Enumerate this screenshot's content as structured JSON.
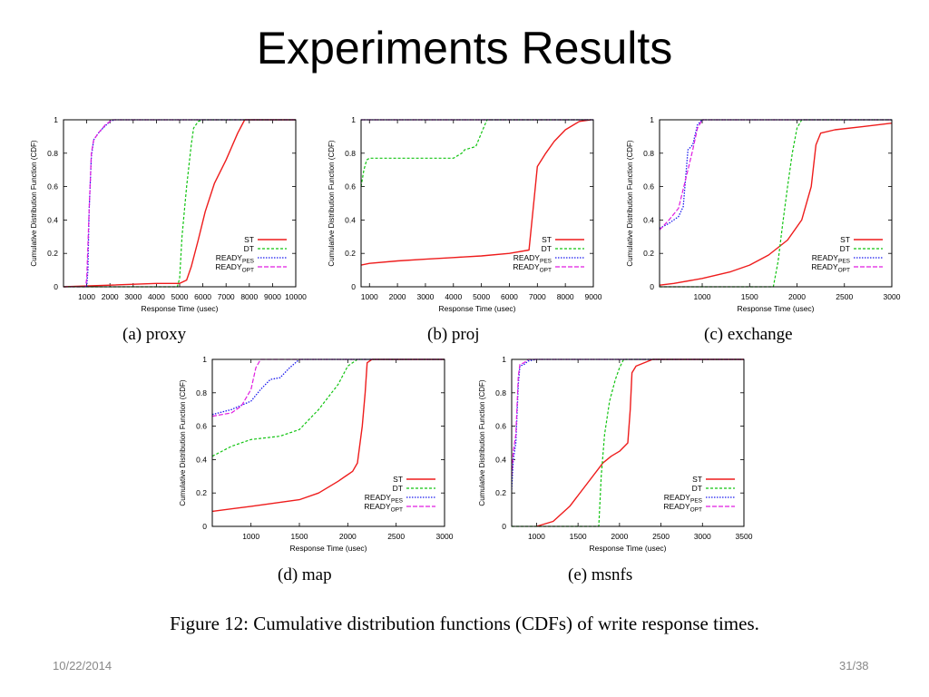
{
  "slide": {
    "title": "Experiments Results",
    "figure_caption": "Figure 12: Cumulative distribution functions (CDFs) of write response times.",
    "date": "10/22/2014",
    "page": "31/38"
  },
  "colors": {
    "ST": "#ee1c1c",
    "DT": "#12c412",
    "READY_PES": "#1a1aee",
    "READY_OPT": "#e01ce0"
  },
  "chart_data": [
    {
      "type": "line",
      "caption": "(a) proxy",
      "xlabel": "Response Time (usec)",
      "ylabel": "Cumulative Distribution Function (CDF)",
      "xlim": [
        0,
        10000
      ],
      "ylim": [
        0,
        1
      ],
      "xticks": [
        1000,
        2000,
        3000,
        4000,
        5000,
        6000,
        7000,
        8000,
        9000,
        10000
      ],
      "xticklabels": [
        "1000",
        "2000",
        "3000",
        "4000",
        "5000",
        "6000",
        "7000",
        "8000",
        "9000",
        "10000"
      ],
      "yticks": [
        0,
        0.2,
        0.4,
        0.6,
        0.8,
        1
      ],
      "yticklabels": [
        "0",
        "0.2",
        "0.4",
        "0.6",
        "0.8",
        "1"
      ],
      "legend_position": "bottom-right",
      "series": [
        {
          "key": "ST",
          "name": "ST",
          "x": [
            0,
            2000,
            4000,
            5000,
            5300,
            5500,
            5800,
            6100,
            6500,
            7000,
            7500,
            7800,
            10000
          ],
          "y": [
            0,
            0.01,
            0.02,
            0.02,
            0.04,
            0.12,
            0.28,
            0.45,
            0.62,
            0.76,
            0.92,
            1,
            1
          ]
        },
        {
          "key": "DT",
          "name": "DT",
          "x": [
            0,
            4900,
            5000,
            5100,
            5300,
            5500,
            5600,
            5800,
            6000,
            10000
          ],
          "y": [
            0,
            0,
            0.05,
            0.3,
            0.6,
            0.85,
            0.95,
            0.99,
            1,
            1
          ]
        },
        {
          "key": "READY_PES",
          "name": "READY",
          "sub": "PES",
          "x": [
            1000,
            1050,
            1100,
            1200,
            1300,
            1500,
            1700,
            2000,
            2200,
            10000
          ],
          "y": [
            0,
            0.1,
            0.45,
            0.78,
            0.88,
            0.92,
            0.95,
            0.99,
            1,
            1
          ]
        },
        {
          "key": "READY_OPT",
          "name": "READY",
          "sub": "OPT",
          "x": [
            0,
            950,
            1000,
            1100,
            1200,
            1300,
            1500,
            1800,
            2100,
            10000
          ],
          "y": [
            0,
            0,
            0.05,
            0.45,
            0.8,
            0.88,
            0.92,
            0.97,
            1,
            1
          ]
        }
      ]
    },
    {
      "type": "line",
      "caption": "(b) proj",
      "xlabel": "Response Time (usec)",
      "ylabel": "Cumulative Distribution Function (CDF)",
      "xlim": [
        700,
        9000
      ],
      "ylim": [
        0,
        1
      ],
      "xticks": [
        1000,
        2000,
        3000,
        4000,
        5000,
        6000,
        7000,
        8000,
        9000
      ],
      "xticklabels": [
        "1000",
        "2000",
        "3000",
        "4000",
        "5000",
        "6000",
        "7000",
        "8000",
        "9000"
      ],
      "yticks": [
        0,
        0.2,
        0.4,
        0.6,
        0.8,
        1
      ],
      "yticklabels": [
        "0",
        "0.2",
        "0.4",
        "0.6",
        "0.8",
        "1"
      ],
      "legend_position": "bottom-right",
      "series": [
        {
          "key": "ST",
          "name": "ST",
          "x": [
            700,
            1000,
            2000,
            3000,
            4000,
            5000,
            6000,
            6700,
            6900,
            7000,
            7300,
            7600,
            8000,
            8500,
            8900
          ],
          "y": [
            0.13,
            0.14,
            0.155,
            0.165,
            0.175,
            0.185,
            0.2,
            0.22,
            0.55,
            0.72,
            0.8,
            0.87,
            0.94,
            0.99,
            1
          ]
        },
        {
          "key": "DT",
          "name": "DT",
          "x": [
            700,
            800,
            900,
            1000,
            2000,
            3000,
            4000,
            4300,
            4400,
            4800,
            5000,
            5200,
            9000
          ],
          "y": [
            0.6,
            0.7,
            0.76,
            0.77,
            0.77,
            0.77,
            0.77,
            0.8,
            0.82,
            0.84,
            0.92,
            1,
            1
          ]
        },
        {
          "key": "READY_PES",
          "name": "READY",
          "sub": "PES",
          "x": [
            700,
            9000
          ],
          "y": [
            1,
            1
          ]
        },
        {
          "key": "READY_OPT",
          "name": "READY",
          "sub": "OPT",
          "x": [
            700,
            9000
          ],
          "y": [
            1,
            1
          ]
        }
      ]
    },
    {
      "type": "line",
      "caption": "(c) exchange",
      "xlabel": "Response Time (usec)",
      "ylabel": "Cumulative Distribution Function (CDF)",
      "xlim": [
        550,
        3000
      ],
      "ylim": [
        0,
        1
      ],
      "xticks": [
        1000,
        1500,
        2000,
        2500,
        3000
      ],
      "xticklabels": [
        "1000",
        "1500",
        "2000",
        "2500",
        "3000"
      ],
      "yticks": [
        0,
        0.2,
        0.4,
        0.6,
        0.8,
        1
      ],
      "yticklabels": [
        "0",
        "0.2",
        "0.4",
        "0.6",
        "0.8",
        "1"
      ],
      "legend_position": "bottom-right",
      "series": [
        {
          "key": "ST",
          "name": "ST",
          "x": [
            550,
            700,
            1000,
            1300,
            1500,
            1700,
            1900,
            2050,
            2150,
            2200,
            2250,
            2400,
            2700,
            3000
          ],
          "y": [
            0.01,
            0.02,
            0.05,
            0.09,
            0.13,
            0.19,
            0.28,
            0.4,
            0.6,
            0.85,
            0.92,
            0.94,
            0.96,
            0.98
          ]
        },
        {
          "key": "DT",
          "name": "DT",
          "x": [
            550,
            1750,
            1800,
            1850,
            1900,
            1950,
            2000,
            2050,
            3000
          ],
          "y": [
            0,
            0,
            0.15,
            0.38,
            0.6,
            0.8,
            0.95,
            1,
            1
          ]
        },
        {
          "key": "READY_PES",
          "name": "READY",
          "sub": "PES",
          "x": [
            550,
            650,
            750,
            800,
            850,
            900,
            950,
            1000,
            3000
          ],
          "y": [
            0.35,
            0.38,
            0.42,
            0.48,
            0.82,
            0.85,
            0.97,
            1,
            1
          ]
        },
        {
          "key": "READY_OPT",
          "name": "READY",
          "sub": "OPT",
          "x": [
            550,
            650,
            750,
            850,
            900,
            950,
            1000,
            3000
          ],
          "y": [
            0.34,
            0.4,
            0.47,
            0.7,
            0.82,
            0.95,
            1,
            1
          ]
        }
      ]
    },
    {
      "type": "line",
      "caption": "(d) map",
      "xlabel": "Response Time (usec)",
      "ylabel": "Cumulative Distribution Function (CDF)",
      "xlim": [
        600,
        3000
      ],
      "ylim": [
        0,
        1
      ],
      "xticks": [
        1000,
        1500,
        2000,
        2500,
        3000
      ],
      "xticklabels": [
        "1000",
        "1500",
        "2000",
        "2500",
        "3000"
      ],
      "yticks": [
        0,
        0.2,
        0.4,
        0.6,
        0.8,
        1
      ],
      "yticklabels": [
        "0",
        "0.2",
        "0.4",
        "0.6",
        "0.8",
        "1"
      ],
      "legend_position": "bottom-right",
      "series": [
        {
          "key": "ST",
          "name": "ST",
          "x": [
            600,
            1000,
            1500,
            1700,
            1900,
            2050,
            2100,
            2150,
            2180,
            2200,
            2250,
            3000
          ],
          "y": [
            0.09,
            0.12,
            0.16,
            0.2,
            0.27,
            0.33,
            0.38,
            0.6,
            0.8,
            0.98,
            1,
            1
          ]
        },
        {
          "key": "DT",
          "name": "DT",
          "x": [
            600,
            800,
            1000,
            1300,
            1500,
            1700,
            1900,
            2000,
            2100,
            3000
          ],
          "y": [
            0.42,
            0.48,
            0.52,
            0.54,
            0.58,
            0.7,
            0.85,
            0.96,
            1,
            1
          ]
        },
        {
          "key": "READY_PES",
          "name": "READY",
          "sub": "PES",
          "x": [
            600,
            800,
            1000,
            1100,
            1200,
            1300,
            1400,
            1500,
            1600,
            3000
          ],
          "y": [
            0.67,
            0.7,
            0.75,
            0.82,
            0.88,
            0.89,
            0.95,
            1,
            1,
            1
          ]
        },
        {
          "key": "READY_OPT",
          "name": "READY",
          "sub": "OPT",
          "x": [
            600,
            800,
            900,
            1000,
            1050,
            1100,
            3000
          ],
          "y": [
            0.66,
            0.68,
            0.72,
            0.82,
            0.95,
            1,
            1
          ]
        }
      ]
    },
    {
      "type": "line",
      "caption": "(e) msnfs",
      "xlabel": "Response Time (usec)",
      "ylabel": "Cumulative Distribution Function (CDF)",
      "xlim": [
        700,
        3500
      ],
      "ylim": [
        0,
        1
      ],
      "xticks": [
        1000,
        1500,
        2000,
        2500,
        3000,
        3500
      ],
      "xticklabels": [
        "1000",
        "1500",
        "2000",
        "2500",
        "3000",
        "3500"
      ],
      "yticks": [
        0,
        0.2,
        0.4,
        0.6,
        0.8,
        1
      ],
      "yticklabels": [
        "0",
        "0.2",
        "0.4",
        "0.6",
        "0.8",
        "1"
      ],
      "legend_position": "bottom-right",
      "series": [
        {
          "key": "ST",
          "name": "ST",
          "x": [
            1000,
            1200,
            1400,
            1600,
            1800,
            1900,
            2000,
            2100,
            2130,
            2150,
            2200,
            2400,
            3500
          ],
          "y": [
            0,
            0.03,
            0.12,
            0.25,
            0.38,
            0.42,
            0.45,
            0.5,
            0.7,
            0.92,
            0.96,
            1,
            1
          ]
        },
        {
          "key": "DT",
          "name": "DT",
          "x": [
            700,
            1750,
            1780,
            1820,
            1880,
            1950,
            2000,
            2050,
            3500
          ],
          "y": [
            0,
            0,
            0.3,
            0.55,
            0.75,
            0.88,
            0.95,
            1,
            1
          ]
        },
        {
          "key": "READY_PES",
          "name": "READY",
          "sub": "PES",
          "x": [
            700,
            720,
            750,
            780,
            800,
            850,
            900,
            1000,
            3500
          ],
          "y": [
            0.22,
            0.4,
            0.5,
            0.85,
            0.96,
            0.97,
            0.99,
            1,
            1
          ]
        },
        {
          "key": "READY_OPT",
          "name": "READY",
          "sub": "OPT",
          "x": [
            700,
            720,
            750,
            780,
            800,
            850,
            900,
            3500
          ],
          "y": [
            0.3,
            0.45,
            0.55,
            0.9,
            0.97,
            0.98,
            1,
            1
          ]
        }
      ]
    }
  ]
}
